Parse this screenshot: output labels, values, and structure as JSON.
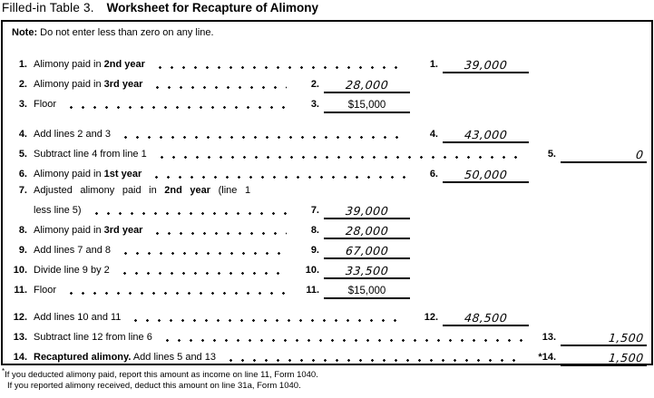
{
  "title": {
    "prefix": "Filled-in Table 3.",
    "main": "Worksheet for Recapture of Alimony"
  },
  "note": {
    "label": "Note:",
    "text": "Do not enter less than zero on any line."
  },
  "rows": [
    {
      "num": "1.",
      "pre": "Alimony paid in ",
      "bold": "2nd year",
      "post": "",
      "enum": "1.",
      "value": "39,000"
    },
    {
      "num": "2.",
      "pre": "Alimony paid in ",
      "bold": "3rd year",
      "post": "",
      "enum": "2.",
      "value": "28,000"
    },
    {
      "num": "3.",
      "pre": "Floor",
      "bold": "",
      "post": "",
      "enum": "3.",
      "value": "$15,000"
    },
    {
      "num": "4.",
      "pre": "Add lines 2 and 3",
      "bold": "",
      "post": "",
      "enum": "4.",
      "value": "43,000"
    },
    {
      "num": "5.",
      "pre": "Subtract line 4 from line 1",
      "bold": "",
      "post": "",
      "enum": "5.",
      "value": "0"
    },
    {
      "num": "6.",
      "pre": "Alimony paid in ",
      "bold": "1st year",
      "post": "",
      "enum": "6.",
      "value": "50,000"
    },
    {
      "num": "7.",
      "pre": "Adjusted alimony paid in ",
      "bold": "2nd year",
      "post": " (line 1",
      "line2": "less line 5)",
      "enum": "7.",
      "value": "39,000"
    },
    {
      "num": "8.",
      "pre": "Alimony paid in ",
      "bold": "3rd year",
      "post": "",
      "enum": "8.",
      "value": "28,000"
    },
    {
      "num": "9.",
      "pre": "Add lines 7 and 8",
      "bold": "",
      "post": "",
      "enum": "9.",
      "value": "67,000"
    },
    {
      "num": "10.",
      "pre": "Divide line 9 by 2",
      "bold": "",
      "post": "",
      "enum": "10.",
      "value": "33,500"
    },
    {
      "num": "11.",
      "pre": "Floor",
      "bold": "",
      "post": "",
      "enum": "11.",
      "value": "$15,000"
    },
    {
      "num": "12.",
      "pre": "Add lines 10 and 11",
      "bold": "",
      "post": "",
      "enum": "12.",
      "value": "48,500"
    },
    {
      "num": "13.",
      "pre": "Subtract line 12 from line 6",
      "bold": "",
      "post": "",
      "enum": "13.",
      "value": "1,500"
    },
    {
      "num": "14.",
      "pre": "",
      "bold": "Recaptured alimony.",
      "post": " Add lines 5 and 13",
      "enum": "*14.",
      "value": "1,500"
    }
  ],
  "footnote": {
    "marker": "*",
    "line1": "If you deducted alimony paid, report this amount as income on line 11, Form 1040.",
    "line2": "If you reported alimony received, deduct this amount on line 31a, Form 1040."
  },
  "colors": {
    "text": "#000000",
    "background": "#ffffff",
    "rule": "#000000"
  }
}
